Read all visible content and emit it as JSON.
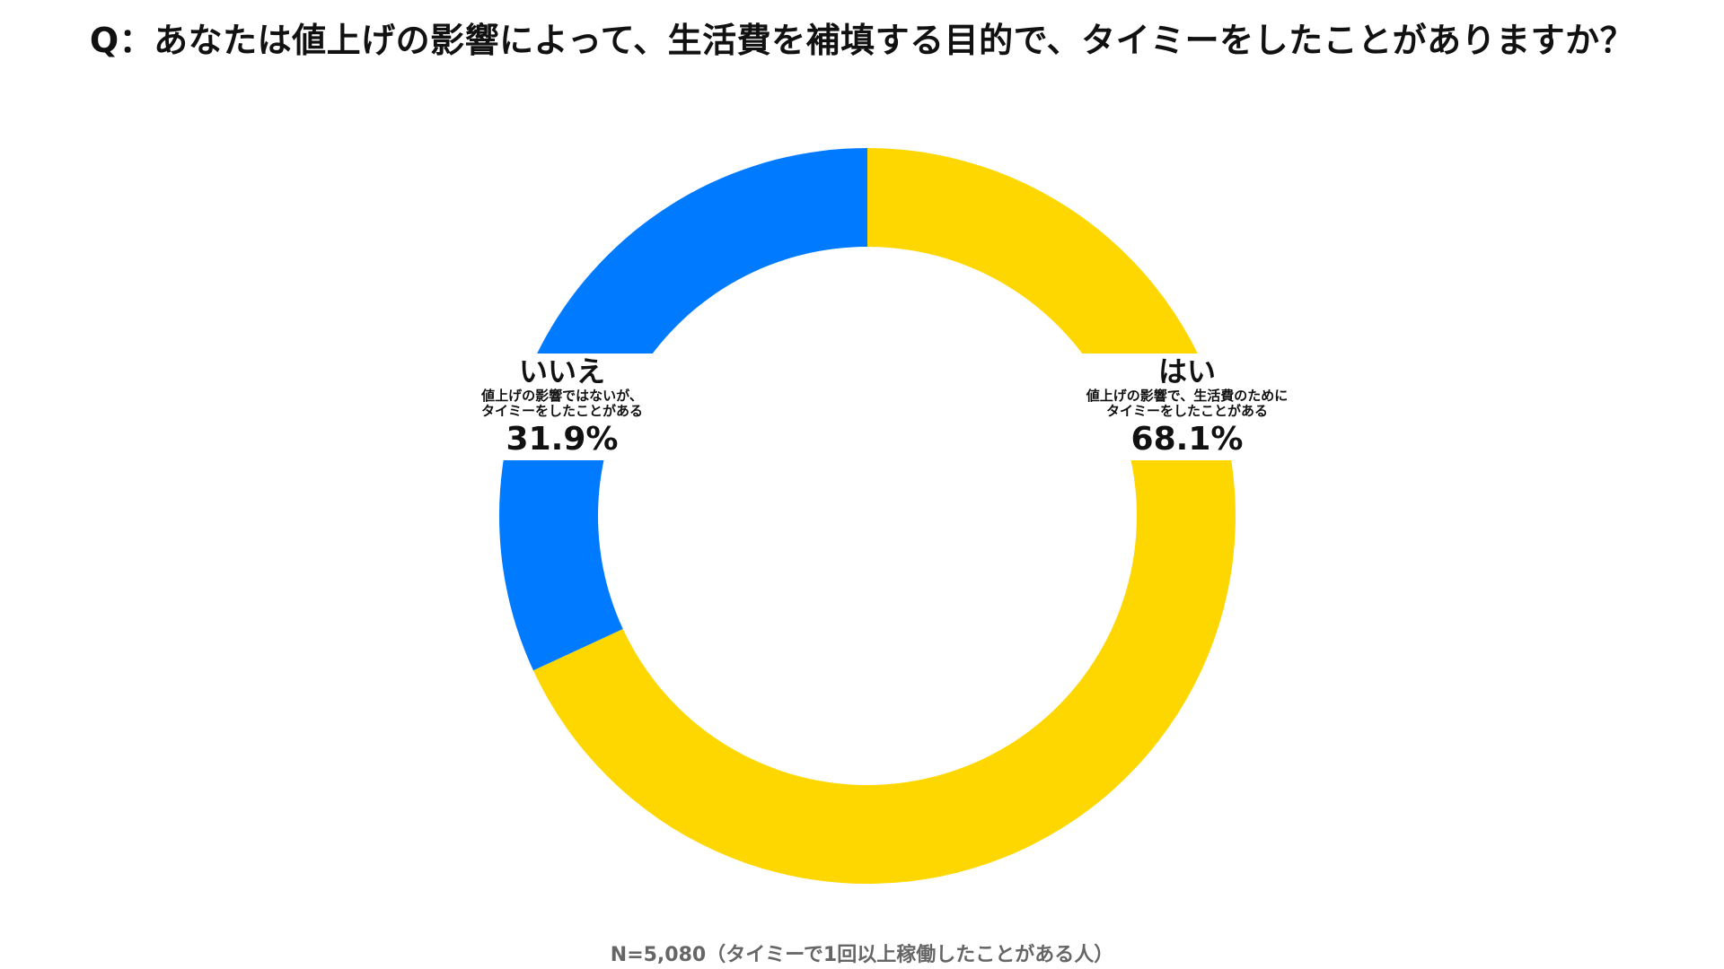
{
  "title": "Q：あなたは値上げの影響によって、生活費を補填する目的で、タイミーをしたことがありますか？",
  "footnote": "N=5,080（タイミーで1回以上稼働したことがある人）",
  "colors": {
    "yes": "#FFD700",
    "no": "#007BFF"
  },
  "chart_data": {
    "type": "pie",
    "style": "donut",
    "unit": "%",
    "slices": [
      {
        "key": "yes",
        "heading": "はい",
        "desc_line1": "値上げの影響で、生活費のために",
        "desc_line2": "タイミーをしたことがある",
        "value": 68.1,
        "label": "68.1%"
      },
      {
        "key": "no",
        "heading": "いいえ",
        "desc_line1": "値上げの影響ではないが、",
        "desc_line2": "タイミーをしたことがある",
        "value": 31.9,
        "label": "31.9%"
      }
    ]
  }
}
